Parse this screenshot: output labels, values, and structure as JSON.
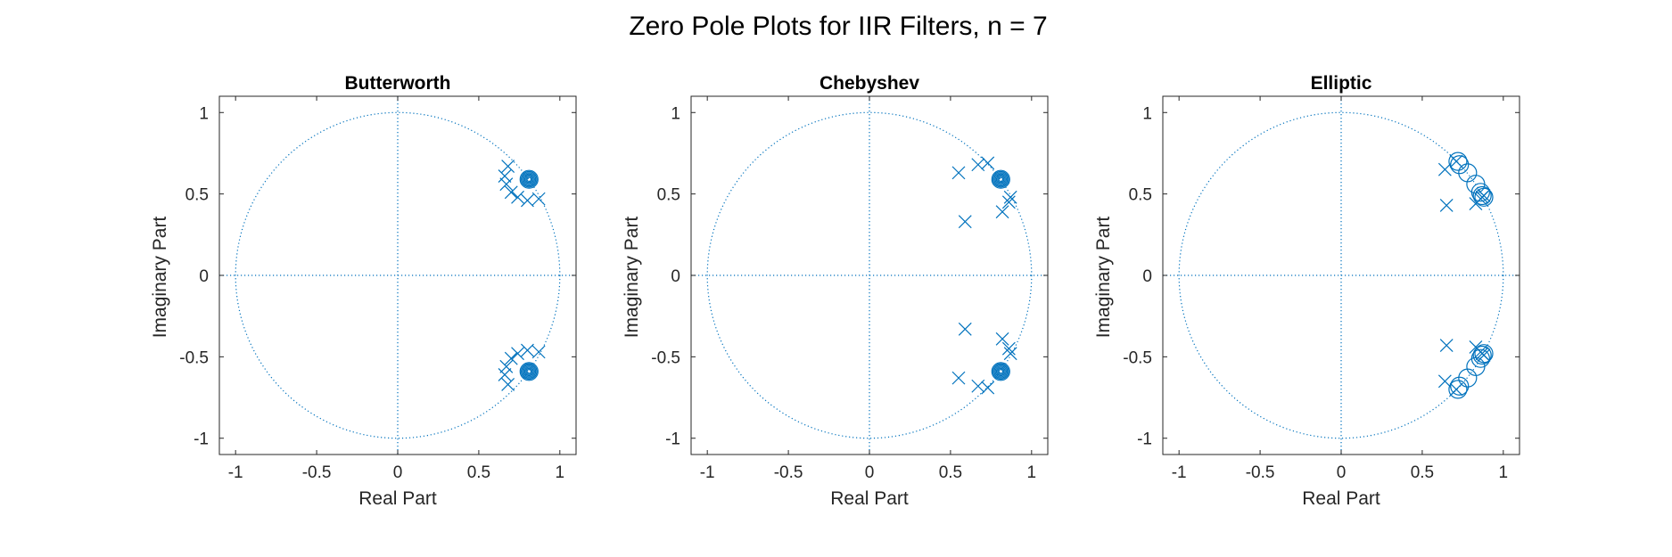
{
  "figure": {
    "title": "Zero Pole Plots for IIR Filters, n = 7"
  },
  "colors": {
    "marker": "#0072BD",
    "axes": "#262626",
    "background": "#ffffff"
  },
  "chart_data": [
    {
      "type": "scatter",
      "title": "Butterworth",
      "xlabel": "Real Part",
      "ylabel": "Imaginary Part",
      "xlim": [
        -1.1,
        1.1
      ],
      "ylim": [
        -1.1,
        1.1
      ],
      "xticks": [
        -1,
        -0.5,
        0,
        0.5,
        1
      ],
      "xtick_labels": [
        "-1",
        "-0.5",
        "0",
        "0.5",
        "1"
      ],
      "yticks": [
        1,
        0.5,
        0,
        -0.5,
        -1
      ],
      "ytick_labels": [
        "1",
        "0.5",
        "0",
        "-0.5",
        "-1"
      ],
      "unit_circle": true,
      "reference_axes": true,
      "zeros": [
        {
          "re": 0.81,
          "im": 0.59
        },
        {
          "re": 0.81,
          "im": 0.59
        },
        {
          "re": 0.81,
          "im": 0.59
        },
        {
          "re": 0.81,
          "im": 0.59
        },
        {
          "re": 0.81,
          "im": 0.59
        },
        {
          "re": 0.81,
          "im": 0.59
        },
        {
          "re": 0.81,
          "im": 0.59
        },
        {
          "re": 0.81,
          "im": -0.59
        },
        {
          "re": 0.81,
          "im": -0.59
        },
        {
          "re": 0.81,
          "im": -0.59
        },
        {
          "re": 0.81,
          "im": -0.59
        },
        {
          "re": 0.81,
          "im": -0.59
        },
        {
          "re": 0.81,
          "im": -0.59
        },
        {
          "re": 0.81,
          "im": -0.59
        }
      ],
      "poles": [
        {
          "re": 0.68,
          "im": 0.67
        },
        {
          "re": 0.66,
          "im": 0.61
        },
        {
          "re": 0.67,
          "im": 0.56
        },
        {
          "re": 0.7,
          "im": 0.51
        },
        {
          "re": 0.74,
          "im": 0.48
        },
        {
          "re": 0.8,
          "im": 0.46
        },
        {
          "re": 0.87,
          "im": 0.47
        },
        {
          "re": 0.68,
          "im": -0.67
        },
        {
          "re": 0.66,
          "im": -0.61
        },
        {
          "re": 0.67,
          "im": -0.56
        },
        {
          "re": 0.7,
          "im": -0.51
        },
        {
          "re": 0.74,
          "im": -0.48
        },
        {
          "re": 0.8,
          "im": -0.46
        },
        {
          "re": 0.87,
          "im": -0.47
        }
      ]
    },
    {
      "type": "scatter",
      "title": "Chebyshev",
      "xlabel": "Real Part",
      "ylabel": "Imaginary Part",
      "xlim": [
        -1.1,
        1.1
      ],
      "ylim": [
        -1.1,
        1.1
      ],
      "xticks": [
        -1,
        -0.5,
        0,
        0.5,
        1
      ],
      "xtick_labels": [
        "-1",
        "-0.5",
        "0",
        "0.5",
        "1"
      ],
      "yticks": [
        1,
        0.5,
        0,
        -0.5,
        -1
      ],
      "ytick_labels": [
        "1",
        "0.5",
        "0",
        "-0.5",
        "-1"
      ],
      "unit_circle": true,
      "reference_axes": true,
      "zeros": [
        {
          "re": 0.81,
          "im": 0.59
        },
        {
          "re": 0.81,
          "im": 0.59
        },
        {
          "re": 0.81,
          "im": 0.59
        },
        {
          "re": 0.81,
          "im": 0.59
        },
        {
          "re": 0.81,
          "im": 0.59
        },
        {
          "re": 0.81,
          "im": 0.59
        },
        {
          "re": 0.81,
          "im": 0.59
        },
        {
          "re": 0.81,
          "im": -0.59
        },
        {
          "re": 0.81,
          "im": -0.59
        },
        {
          "re": 0.81,
          "im": -0.59
        },
        {
          "re": 0.81,
          "im": -0.59
        },
        {
          "re": 0.81,
          "im": -0.59
        },
        {
          "re": 0.81,
          "im": -0.59
        },
        {
          "re": 0.81,
          "im": -0.59
        }
      ],
      "poles": [
        {
          "re": 0.55,
          "im": 0.63
        },
        {
          "re": 0.67,
          "im": 0.68
        },
        {
          "re": 0.73,
          "im": 0.69
        },
        {
          "re": 0.59,
          "im": 0.33
        },
        {
          "re": 0.82,
          "im": 0.39
        },
        {
          "re": 0.86,
          "im": 0.45
        },
        {
          "re": 0.87,
          "im": 0.48
        },
        {
          "re": 0.55,
          "im": -0.63
        },
        {
          "re": 0.67,
          "im": -0.68
        },
        {
          "re": 0.73,
          "im": -0.69
        },
        {
          "re": 0.59,
          "im": -0.33
        },
        {
          "re": 0.82,
          "im": -0.39
        },
        {
          "re": 0.86,
          "im": -0.45
        },
        {
          "re": 0.87,
          "im": -0.48
        }
      ]
    },
    {
      "type": "scatter",
      "title": "Elliptic",
      "xlabel": "Real Part",
      "ylabel": "Imaginary Part",
      "xlim": [
        -1.1,
        1.1
      ],
      "ylim": [
        -1.1,
        1.1
      ],
      "xticks": [
        -1,
        -0.5,
        0,
        0.5,
        1
      ],
      "xtick_labels": [
        "-1",
        "-0.5",
        "0",
        "0.5",
        "1"
      ],
      "yticks": [
        1,
        0.5,
        0,
        -0.5,
        -1
      ],
      "ytick_labels": [
        "1",
        "0.5",
        "0",
        "-0.5",
        "-1"
      ],
      "unit_circle": true,
      "reference_axes": true,
      "zeros": [
        {
          "re": 0.72,
          "im": 0.7
        },
        {
          "re": 0.73,
          "im": 0.68
        },
        {
          "re": 0.78,
          "im": 0.63
        },
        {
          "re": 0.83,
          "im": 0.56
        },
        {
          "re": 0.86,
          "im": 0.51
        },
        {
          "re": 0.87,
          "im": 0.49
        },
        {
          "re": 0.88,
          "im": 0.48
        },
        {
          "re": 0.72,
          "im": -0.7
        },
        {
          "re": 0.73,
          "im": -0.68
        },
        {
          "re": 0.78,
          "im": -0.63
        },
        {
          "re": 0.83,
          "im": -0.56
        },
        {
          "re": 0.86,
          "im": -0.51
        },
        {
          "re": 0.87,
          "im": -0.49
        },
        {
          "re": 0.88,
          "im": -0.48
        }
      ],
      "poles": [
        {
          "re": 0.64,
          "im": 0.65
        },
        {
          "re": 0.71,
          "im": 0.7
        },
        {
          "re": 0.65,
          "im": 0.43
        },
        {
          "re": 0.83,
          "im": 0.44
        },
        {
          "re": 0.86,
          "im": 0.47
        },
        {
          "re": 0.87,
          "im": 0.48
        },
        {
          "re": 0.88,
          "im": 0.49
        },
        {
          "re": 0.64,
          "im": -0.65
        },
        {
          "re": 0.71,
          "im": -0.7
        },
        {
          "re": 0.65,
          "im": -0.43
        },
        {
          "re": 0.83,
          "im": -0.44
        },
        {
          "re": 0.86,
          "im": -0.47
        },
        {
          "re": 0.87,
          "im": -0.48
        },
        {
          "re": 0.88,
          "im": -0.49
        }
      ]
    }
  ]
}
